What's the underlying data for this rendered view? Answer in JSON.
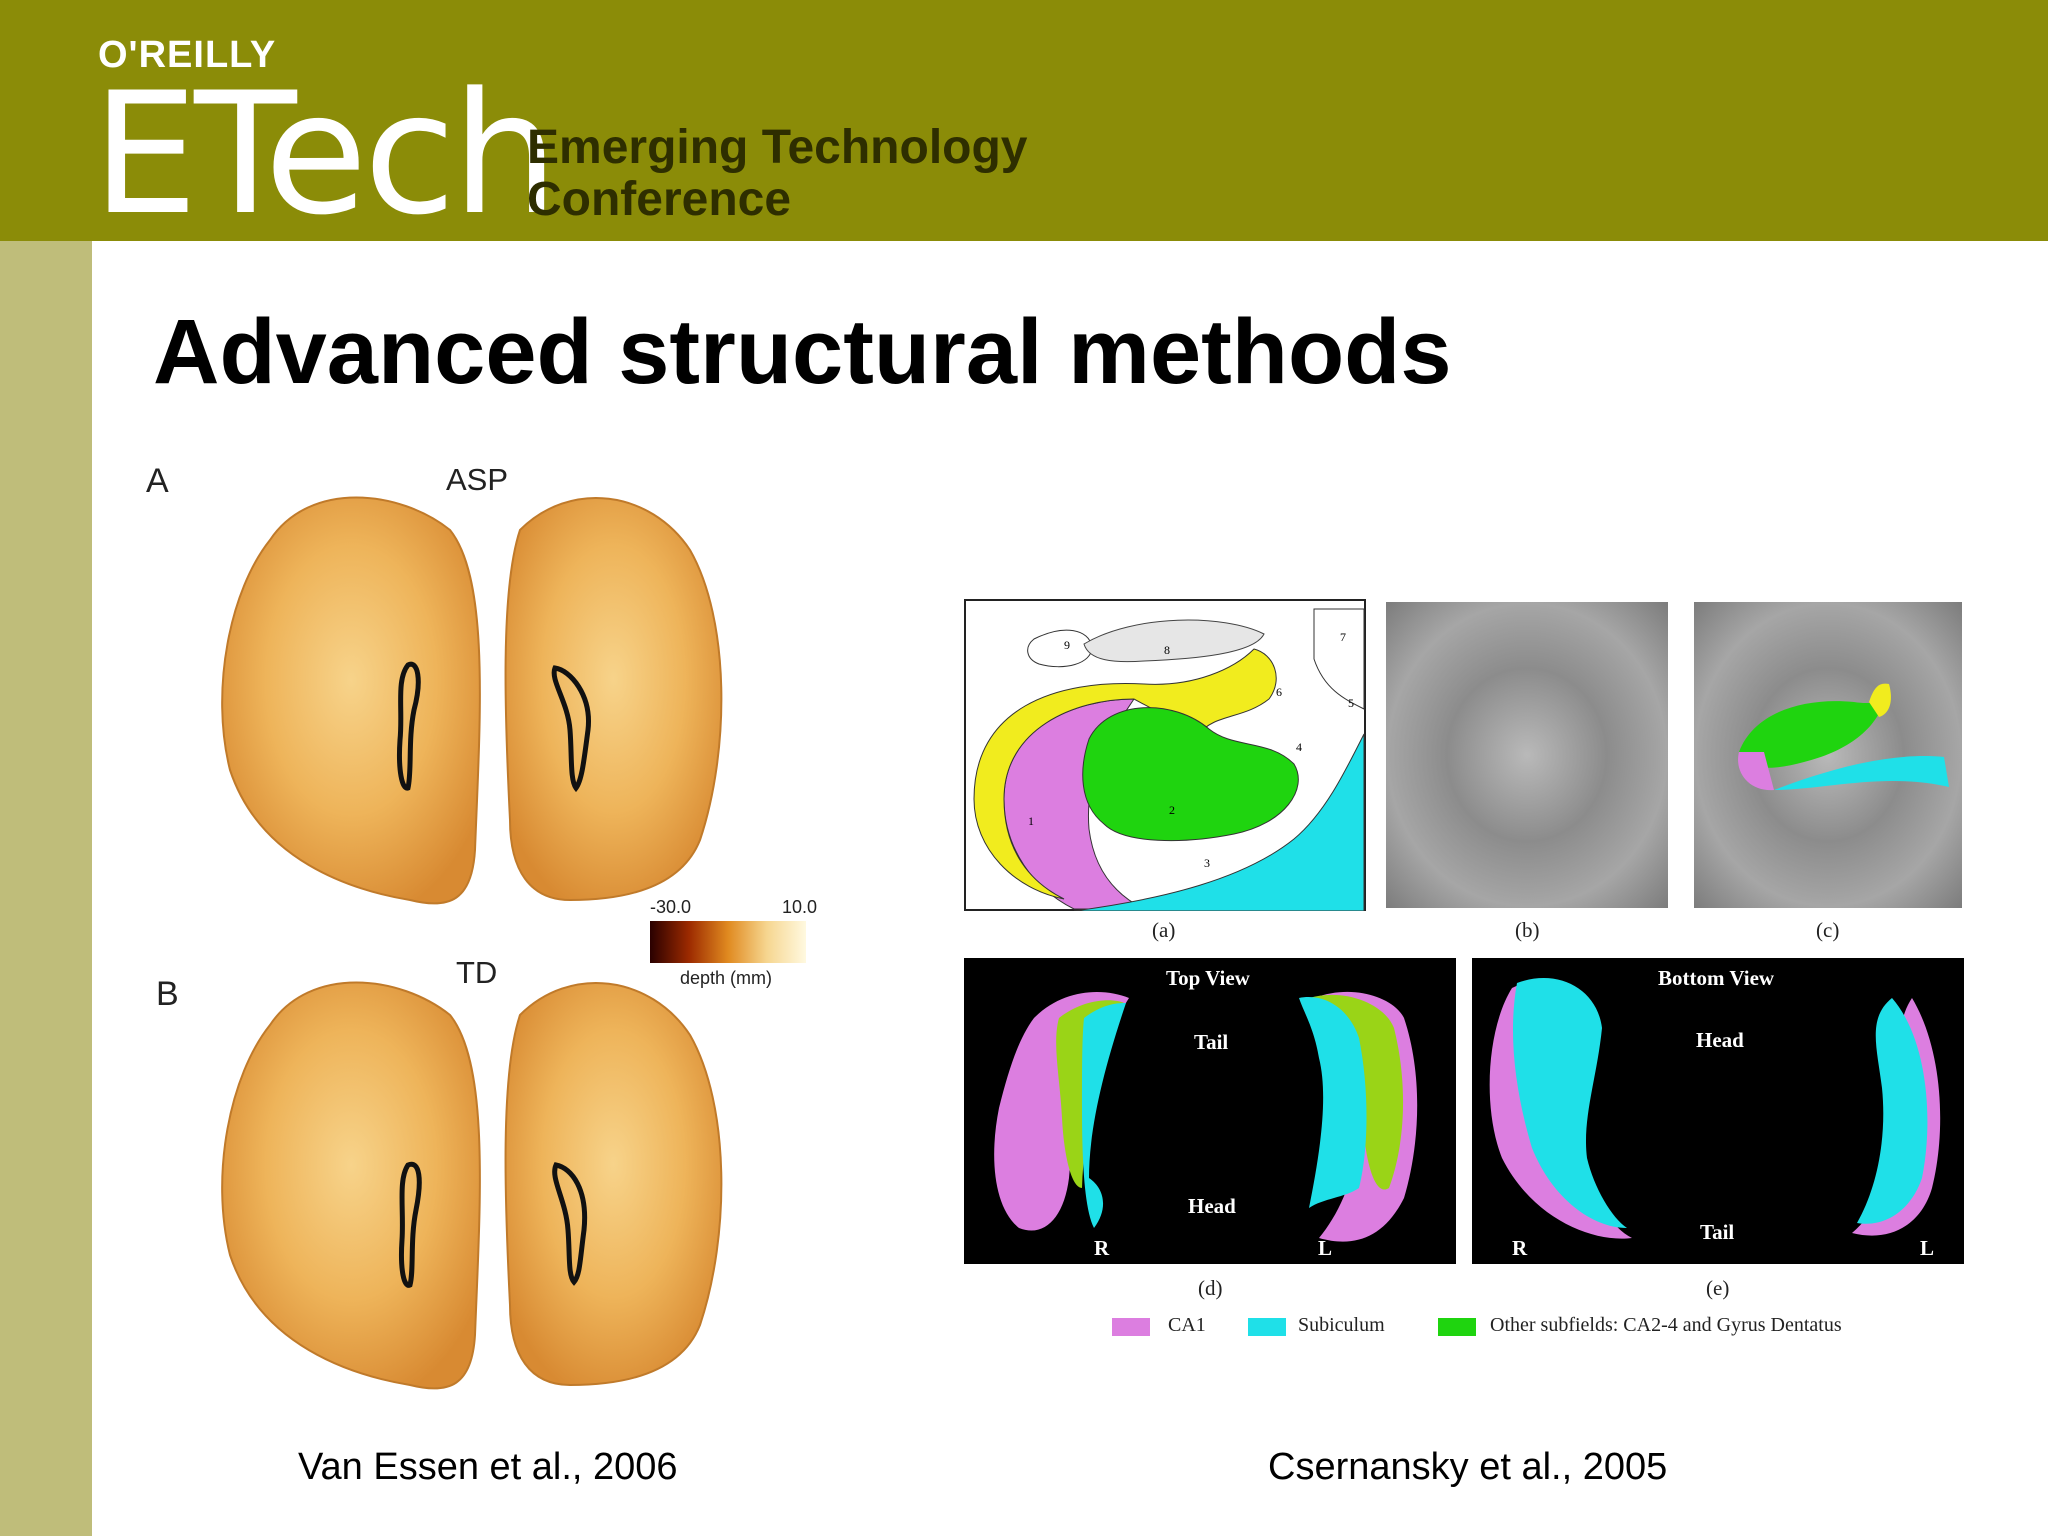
{
  "header": {
    "publisher": "O'REILLY",
    "brand": "ETech",
    "conference_line1": "Emerging Technology",
    "conference_line2": "Conference"
  },
  "slide": {
    "title": "Advanced structural methods"
  },
  "left_figure": {
    "panel_a_label": "A",
    "panel_a_group": "ASP",
    "panel_b_label": "B",
    "panel_b_group": "TD",
    "colorbar_min": "-30.0",
    "colorbar_max": "10.0",
    "colorbar_label": "depth (mm)",
    "credit": "Van Essen et al., 2006"
  },
  "right_figure": {
    "labels": {
      "a": "(a)",
      "b": "(b)",
      "c": "(c)",
      "d": "(d)",
      "e": "(e)"
    },
    "atlas_numbers": [
      "9",
      "8",
      "7",
      "6",
      "5",
      "4",
      "1",
      "2",
      "3"
    ],
    "top_view": {
      "title": "Top View",
      "tail": "Tail",
      "head": "Head",
      "right": "R",
      "left": "L"
    },
    "bottom_view": {
      "title": "Bottom View",
      "head": "Head",
      "tail": "Tail",
      "right": "R",
      "left": "L"
    },
    "legend": [
      {
        "label": "CA1",
        "color": "#dc7ee0"
      },
      {
        "label": "Subiculum",
        "color": "#1fe0e8"
      },
      {
        "label": "Other subfields: CA2-4 and Gyrus Dentatus",
        "color": "#1fd40f"
      }
    ],
    "credit": "Csernansky et al., 2005"
  },
  "colors": {
    "header_bg": "#8b8c08",
    "left_bar": "#bfbd7a"
  }
}
